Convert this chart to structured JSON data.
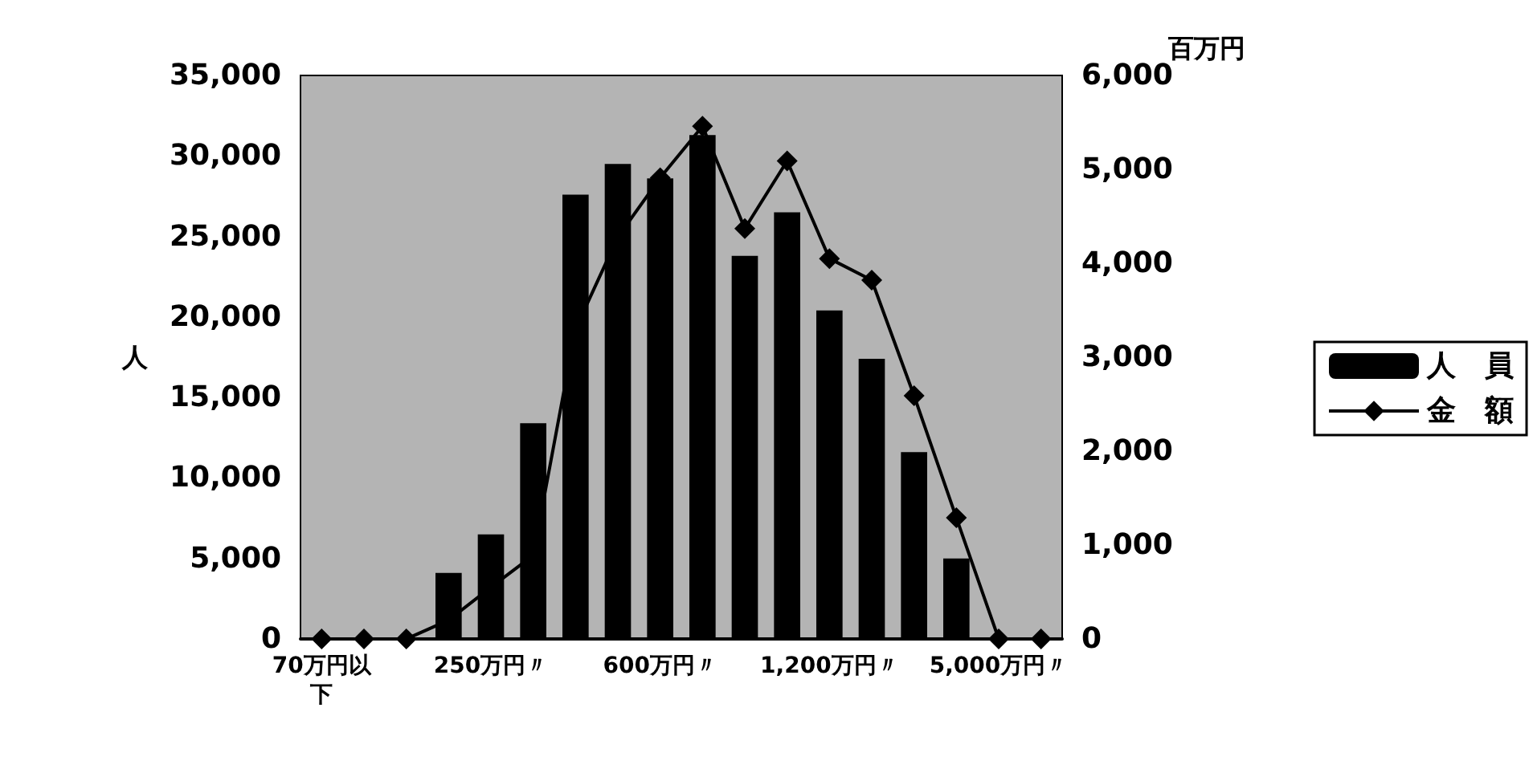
{
  "chart_data": {
    "type": "bar",
    "ylabel": "人",
    "y2label": "百万円",
    "categories": [
      "70万円以下",
      null,
      null,
      null,
      "250万円〃",
      null,
      null,
      null,
      "600万円〃",
      null,
      null,
      null,
      "1,200万円〃",
      null,
      null,
      null,
      "5,000万円〃",
      null
    ],
    "series": [
      {
        "name": "人　員",
        "color": "#000000",
        "values": [
          0,
          0,
          0,
          4100,
          6500,
          13400,
          27600,
          29500,
          28600,
          31300,
          23800,
          26500,
          20400,
          17400,
          11600,
          5000,
          0,
          0
        ]
      },
      {
        "name": "金　額",
        "type": "line",
        "axis": "y2",
        "color": "#000000",
        "marker": "diamond",
        "values": [
          0,
          0,
          0,
          200,
          550,
          890,
          3300,
          4280,
          4910,
          5460,
          4370,
          5090,
          4050,
          3820,
          2590,
          1290,
          0,
          0
        ]
      }
    ],
    "ylim": [
      0,
      35000
    ],
    "yticks": [
      {
        "value": 0,
        "label": "0"
      },
      {
        "value": 5000,
        "label": "5,000"
      },
      {
        "value": 10000,
        "label": "10,000"
      },
      {
        "value": 15000,
        "label": "15,000"
      },
      {
        "value": 20000,
        "label": "20,000"
      },
      {
        "value": 25000,
        "label": "25,000"
      },
      {
        "value": 30000,
        "label": "30,000"
      },
      {
        "value": 35000,
        "label": "35,000"
      }
    ],
    "y2lim": [
      0,
      6000
    ],
    "y2ticks": [
      {
        "value": 0,
        "label": "0"
      },
      {
        "value": 1000,
        "label": "1,000"
      },
      {
        "value": 2000,
        "label": "2,000"
      },
      {
        "value": 3000,
        "label": "3,000"
      },
      {
        "value": 4000,
        "label": "4,000"
      },
      {
        "value": 5000,
        "label": "5,000"
      },
      {
        "value": 6000,
        "label": "6,000"
      }
    ],
    "grid": false,
    "legend": "right"
  }
}
